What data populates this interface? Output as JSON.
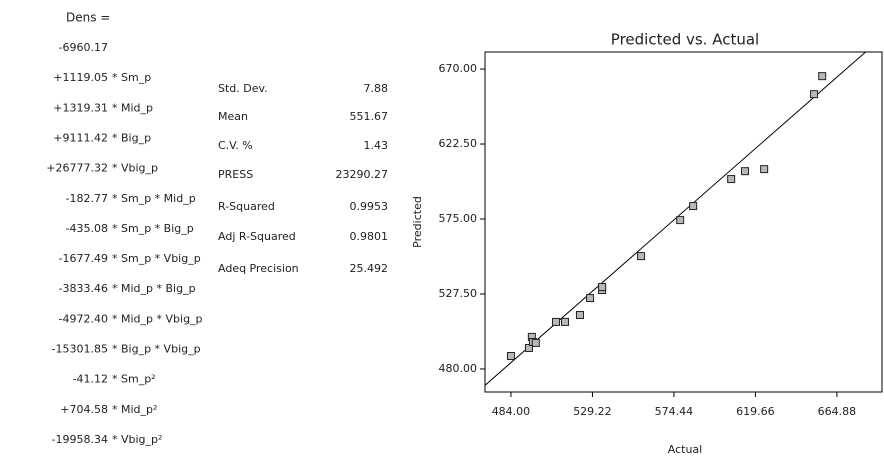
{
  "equation": {
    "title": "Dens =",
    "lines": [
      {
        "coef": "-6960.17"
      },
      {
        "coef": "+1119.05",
        "term": "* Sm_p"
      },
      {
        "coef": "+1319.31",
        "term": "* Mid_p"
      },
      {
        "coef": "+9111.42",
        "term": "* Big_p"
      },
      {
        "coef": "+26777.32",
        "term": "* Vbig_p"
      },
      {
        "coef": "-182.77",
        "term": "* Sm_p * Mid_p"
      },
      {
        "coef": "-435.08",
        "term": "* Sm_p * Big_p"
      },
      {
        "coef": "-1677.49",
        "term": "* Sm_p * Vbig_p"
      },
      {
        "coef": "-3833.46",
        "term": "* Mid_p * Big_p"
      },
      {
        "coef": "-4972.40",
        "term": "* Mid_p * Vbig_p"
      },
      {
        "coef": "-15301.85",
        "term": "* Big_p * Vbig_p"
      },
      {
        "coef": "-41.12",
        "term": "* Sm_p²"
      },
      {
        "coef": "+704.58",
        "term": "* Mid_p²"
      },
      {
        "coef": "-19958.34",
        "term": "* Vbig_p²"
      }
    ]
  },
  "stats": {
    "rows": [
      [
        "Std. Dev.",
        "7.88"
      ],
      [
        "Mean",
        "551.67"
      ],
      [
        "C.V. %",
        "1.43"
      ],
      [
        "PRESS",
        "23290.27"
      ],
      [
        "R-Squared",
        "0.9953"
      ],
      [
        "Adj R-Squared",
        "0.9801"
      ],
      [
        "Adeq Precision",
        "25.492"
      ]
    ]
  },
  "chart_data": {
    "type": "scatter",
    "title": "Predicted vs. Actual",
    "x_label": "Actual",
    "y_label": "Predicted",
    "x": [
      484.0,
      494.0,
      495.6,
      496.2,
      497.8,
      509.0,
      514.0,
      522.3,
      527.9,
      534.6,
      534.6,
      556.2,
      577.9,
      585.1,
      606.2,
      613.9,
      624.5,
      652.2,
      656.7
    ],
    "values": [
      488.2,
      493.3,
      500.3,
      497.1,
      496.5,
      509.8,
      509.8,
      514.2,
      524.9,
      530.0,
      531.9,
      551.5,
      574.3,
      583.2,
      600.3,
      605.3,
      606.6,
      654.1,
      665.5
    ],
    "color": "#b8b8b8",
    "xlim": [
      469.6,
      689.9
    ],
    "ylim": [
      465.4,
      680.8
    ],
    "xticks": [
      {
        "value": 484.0,
        "label": "484.00"
      },
      {
        "value": 529.22,
        "label": "529.22"
      },
      {
        "value": 574.44,
        "label": "574.44"
      },
      {
        "value": 619.66,
        "label": "619.66"
      },
      {
        "value": 664.88,
        "label": "664.88"
      }
    ],
    "yticks": [
      {
        "value": 480.0,
        "label": "480.00"
      },
      {
        "value": 527.5,
        "label": "527.50"
      },
      {
        "value": 575.0,
        "label": "575.00"
      },
      {
        "value": 622.5,
        "label": "622.50"
      },
      {
        "value": 670.0,
        "label": "670.00"
      }
    ]
  }
}
